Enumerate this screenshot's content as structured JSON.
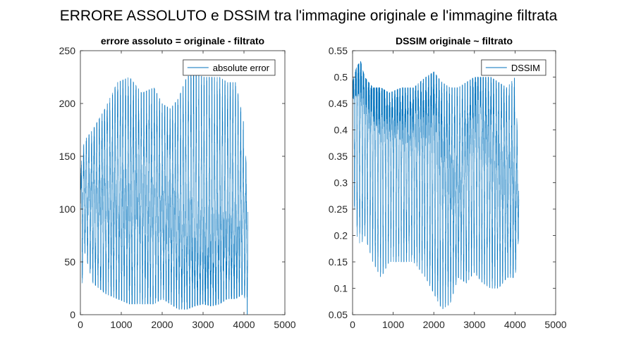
{
  "figure": {
    "title": "ERRORE ASSOLUTO e DSSIM tra l'immagine originale e l'immagine filtrata"
  },
  "chart_data": [
    {
      "type": "line",
      "title": "errore assoluto = originale - filtrato",
      "xlabel": "",
      "ylabel": "",
      "xlim": [
        0,
        5000
      ],
      "ylim": [
        0,
        250
      ],
      "xticks": [
        0,
        1000,
        2000,
        3000,
        4000,
        5000
      ],
      "yticks": [
        0,
        50,
        100,
        150,
        200,
        250
      ],
      "color": "#0072BD",
      "legend": {
        "location": "top-right",
        "entries": [
          "absolute error"
        ]
      },
      "series": [
        {
          "name": "absolute error",
          "n_points": 4096,
          "oscillation_period": 64,
          "envelope_x": [
            0,
            30,
            100,
            300,
            600,
            900,
            1200,
            1500,
            1800,
            2000,
            2200,
            2400,
            2600,
            2800,
            3000,
            3200,
            3400,
            3600,
            3800,
            4000,
            4080,
            4096
          ],
          "envelope_upper": [
            120,
            150,
            165,
            175,
            195,
            220,
            225,
            210,
            215,
            200,
            195,
            205,
            225,
            230,
            225,
            225,
            225,
            220,
            220,
            180,
            125,
            100
          ],
          "envelope_lower": [
            0,
            20,
            60,
            30,
            20,
            15,
            10,
            10,
            10,
            15,
            10,
            5,
            5,
            8,
            10,
            8,
            10,
            15,
            15,
            20,
            0,
            0
          ],
          "center_x": [
            0,
            500,
            1000,
            1500,
            2000,
            2500,
            3000,
            3500,
            4000,
            4096
          ],
          "center_y": [
            115,
            110,
            105,
            110,
            100,
            80,
            70,
            75,
            85,
            90
          ]
        }
      ]
    },
    {
      "type": "line",
      "title": "DSSIM originale ~ filtrato",
      "xlabel": "",
      "ylabel": "",
      "xlim": [
        0,
        5000
      ],
      "ylim": [
        0.05,
        0.55
      ],
      "xticks": [
        0,
        1000,
        2000,
        3000,
        4000,
        5000
      ],
      "yticks": [
        0.05,
        0.1,
        0.15,
        0.2,
        0.25,
        0.3,
        0.35,
        0.4,
        0.45,
        0.5,
        0.55
      ],
      "color": "#0072BD",
      "legend": {
        "location": "top-right",
        "entries": [
          "DSSIM"
        ]
      },
      "series": [
        {
          "name": "DSSIM",
          "n_points": 4096,
          "oscillation_period": 64,
          "envelope_x": [
            0,
            100,
            200,
            300,
            500,
            700,
            900,
            1200,
            1500,
            1800,
            2000,
            2200,
            2400,
            2600,
            2800,
            3000,
            3200,
            3400,
            3600,
            3800,
            4000,
            4096
          ],
          "envelope_upper": [
            0.49,
            0.52,
            0.53,
            0.5,
            0.48,
            0.48,
            0.47,
            0.48,
            0.48,
            0.5,
            0.51,
            0.49,
            0.48,
            0.48,
            0.49,
            0.5,
            0.5,
            0.5,
            0.49,
            0.48,
            0.5,
            0.33
          ],
          "envelope_lower": [
            0.3,
            0.2,
            0.18,
            0.2,
            0.15,
            0.12,
            0.15,
            0.15,
            0.15,
            0.12,
            0.09,
            0.06,
            0.07,
            0.12,
            0.11,
            0.13,
            0.11,
            0.1,
            0.1,
            0.12,
            0.12,
            0.2
          ],
          "center_x": [
            0,
            150,
            400,
            800,
            1200,
            1600,
            2000,
            2300,
            2600,
            3000,
            3400,
            3800,
            4096
          ],
          "center_y": [
            0.49,
            0.48,
            0.45,
            0.43,
            0.41,
            0.41,
            0.41,
            0.34,
            0.28,
            0.43,
            0.37,
            0.3,
            0.28
          ]
        }
      ]
    }
  ]
}
